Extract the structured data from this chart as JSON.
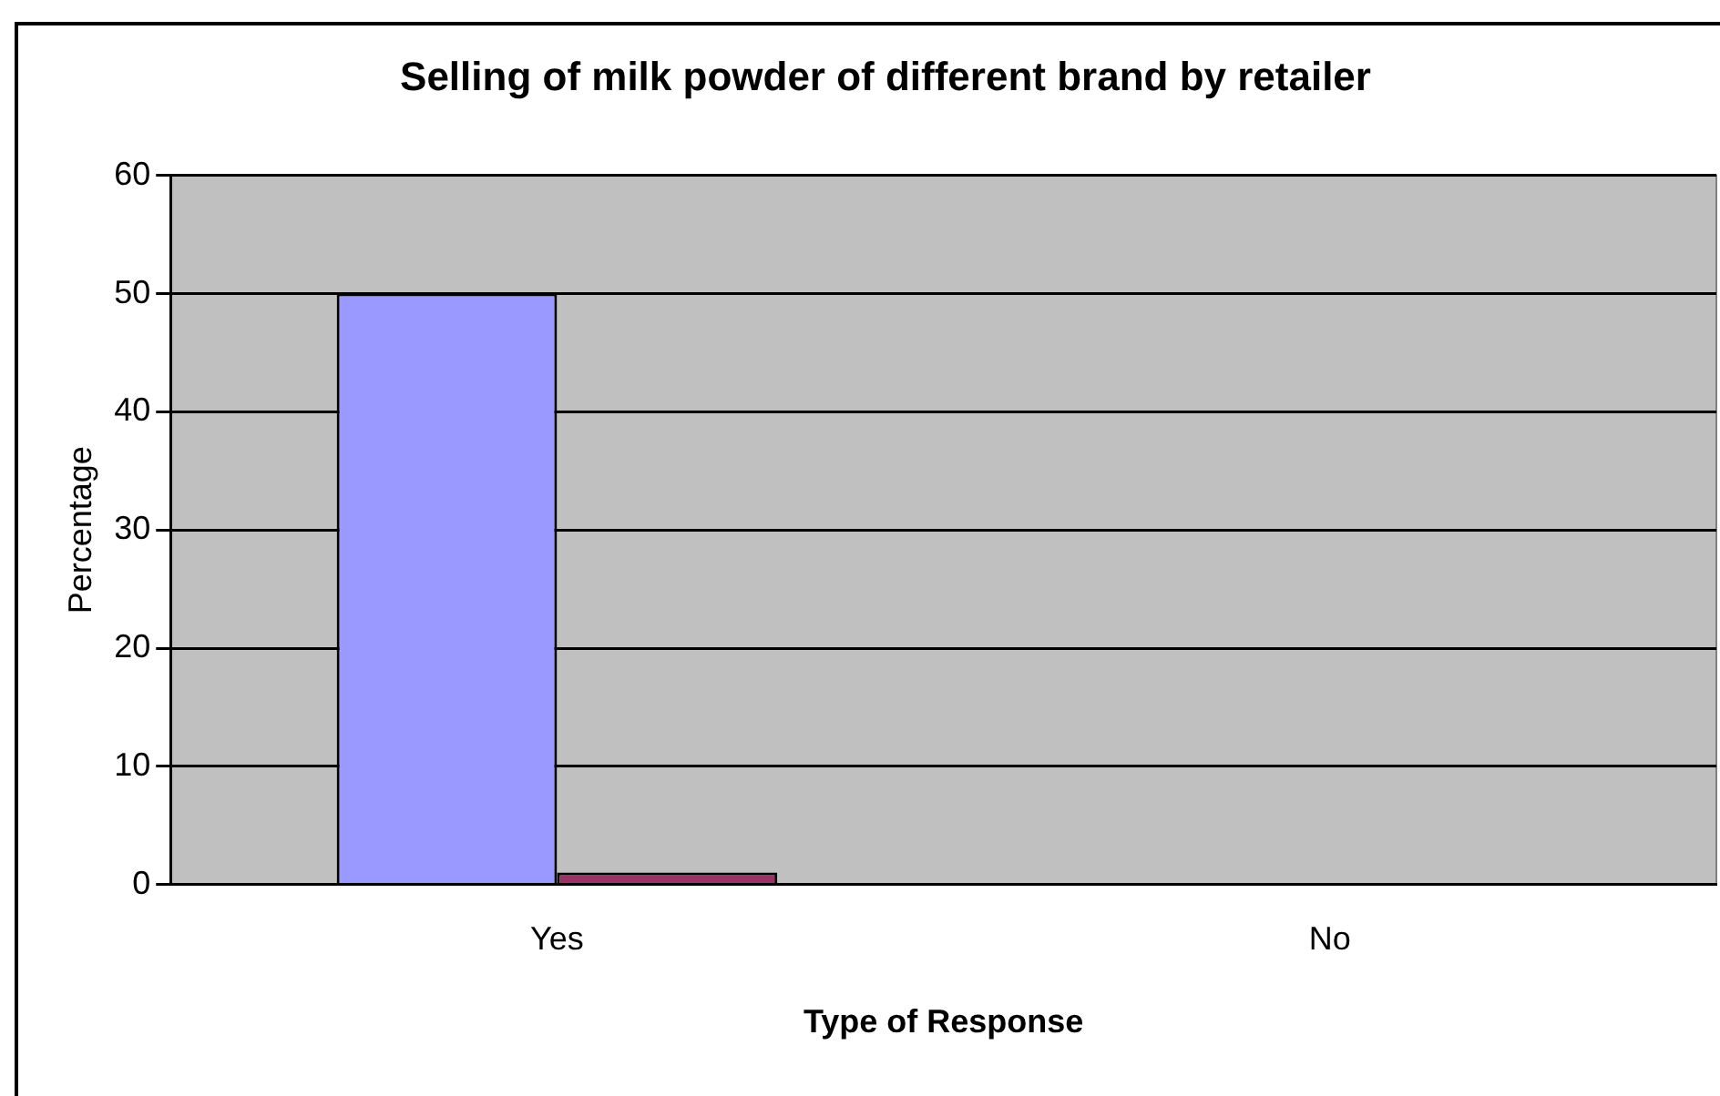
{
  "chart_data": {
    "type": "bar",
    "title": "Selling of milk powder of different brand by retailer",
    "xlabel": "Type of Response",
    "ylabel": "Percentage",
    "categories": [
      "Yes",
      "No"
    ],
    "series": [
      {
        "color": "#9999ff",
        "values": [
          50,
          0
        ]
      },
      {
        "color": "#993366",
        "values": [
          1,
          0
        ]
      }
    ],
    "ylim": [
      0,
      60
    ],
    "yticks": [
      0,
      10,
      20,
      30,
      40,
      50,
      60
    ],
    "grid": "y",
    "legend": false
  }
}
